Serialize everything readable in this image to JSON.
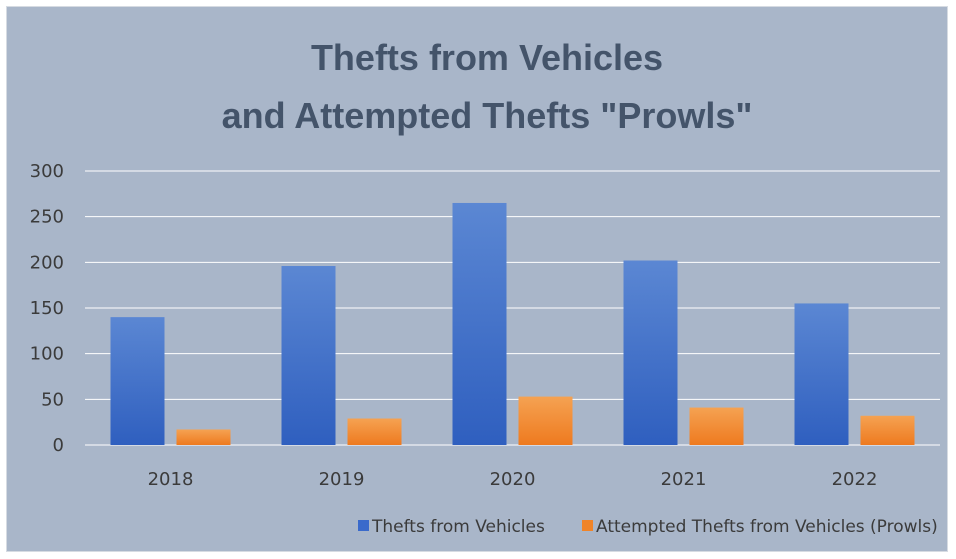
{
  "chart_data": {
    "type": "bar",
    "title_lines": [
      "Thefts from Vehicles",
      "and Attempted Thefts \"Prowls\""
    ],
    "categories": [
      "2018",
      "2019",
      "2020",
      "2021",
      "2022"
    ],
    "series": [
      {
        "name": "Thefts from Vehicles",
        "values": [
          140,
          196,
          265,
          202,
          155
        ],
        "color_top": "#5b87d3",
        "color_bottom": "#2f5fbf"
      },
      {
        "name": "Attempted Thefts from Vehicles (Prowls)",
        "values": [
          17,
          29,
          53,
          41,
          32
        ],
        "color_top": "#f5a252",
        "color_bottom": "#ee7a1f"
      }
    ],
    "ylim": [
      0,
      300
    ],
    "yticks": [
      0,
      50,
      100,
      150,
      200,
      250,
      300
    ],
    "grid": true,
    "legend_position": "bottom"
  },
  "colors": {
    "background": "#a9b6c9",
    "gridline": "#ffffff",
    "title": "#44546a"
  }
}
